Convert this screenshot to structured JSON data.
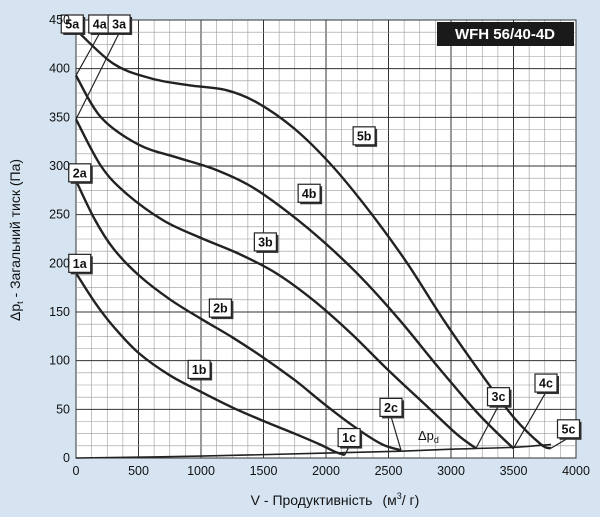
{
  "chart_data": {
    "type": "line",
    "title": "WFH 56/40-4D",
    "xlabel": "V - Продуктивність",
    "xunit": "(м³/г)",
    "xunit_base": "(м",
    "xunit_sup": "3",
    "xunit_end": "/ г)",
    "ylabel_symbol": "Δp",
    "ylabel_sub": "t",
    "ylabel_text": " - Загальний тиск (Па)",
    "xlim": [
      0,
      4000
    ],
    "ylim": [
      0,
      450
    ],
    "x_ticks": [
      "0",
      "500",
      "1000",
      "1500",
      "2000",
      "2500",
      "3000",
      "3500",
      "4000"
    ],
    "y_ticks": [
      "0",
      "50",
      "100",
      "150",
      "200",
      "250",
      "300",
      "350",
      "400",
      "450"
    ],
    "grid": true,
    "minor_grid_x": 125,
    "minor_grid_y": 12.5,
    "colors": {
      "background": "#d6e4f2",
      "plot": "#ffffff",
      "line": "#222222",
      "title_bg": "#1a1a1a"
    },
    "series": [
      {
        "name": "1",
        "points": [
          [
            0,
            190
          ],
          [
            150,
            160
          ],
          [
            300,
            135
          ],
          [
            500,
            108
          ],
          [
            750,
            85
          ],
          [
            1000,
            68
          ],
          [
            1250,
            52
          ],
          [
            1500,
            38
          ],
          [
            1750,
            25
          ],
          [
            1950,
            14
          ],
          [
            2080,
            6
          ],
          [
            2150,
            3
          ]
        ]
      },
      {
        "name": "2",
        "points": [
          [
            0,
            285
          ],
          [
            150,
            245
          ],
          [
            300,
            215
          ],
          [
            500,
            188
          ],
          [
            750,
            163
          ],
          [
            1000,
            143
          ],
          [
            1250,
            124
          ],
          [
            1500,
            103
          ],
          [
            1750,
            80
          ],
          [
            2000,
            54
          ],
          [
            2250,
            30
          ],
          [
            2450,
            14
          ],
          [
            2600,
            8
          ]
        ]
      },
      {
        "name": "3",
        "points": [
          [
            0,
            348
          ],
          [
            200,
            300
          ],
          [
            400,
            272
          ],
          [
            700,
            244
          ],
          [
            1000,
            226
          ],
          [
            1300,
            210
          ],
          [
            1600,
            190
          ],
          [
            1900,
            162
          ],
          [
            2200,
            128
          ],
          [
            2500,
            90
          ],
          [
            2800,
            54
          ],
          [
            3050,
            24
          ],
          [
            3200,
            10
          ]
        ]
      },
      {
        "name": "4",
        "points": [
          [
            0,
            393
          ],
          [
            200,
            350
          ],
          [
            500,
            322
          ],
          [
            800,
            309
          ],
          [
            1100,
            297
          ],
          [
            1400,
            279
          ],
          [
            1700,
            252
          ],
          [
            2000,
            220
          ],
          [
            2300,
            183
          ],
          [
            2600,
            140
          ],
          [
            2900,
            93
          ],
          [
            3200,
            48
          ],
          [
            3400,
            22
          ],
          [
            3500,
            10
          ]
        ]
      },
      {
        "name": "5",
        "points": [
          [
            0,
            440
          ],
          [
            300,
            405
          ],
          [
            600,
            390
          ],
          [
            900,
            383
          ],
          [
            1200,
            378
          ],
          [
            1450,
            365
          ],
          [
            1750,
            338
          ],
          [
            2050,
            300
          ],
          [
            2350,
            253
          ],
          [
            2650,
            200
          ],
          [
            2950,
            140
          ],
          [
            3250,
            85
          ],
          [
            3500,
            42
          ],
          [
            3720,
            14
          ],
          [
            3800,
            10
          ]
        ]
      }
    ],
    "system_curve": {
      "name": "Δp_d",
      "label": "Δp",
      "label_sub": "d",
      "points": [
        [
          0,
          0
        ],
        [
          1000,
          2
        ],
        [
          2000,
          5
        ],
        [
          2600,
          7
        ],
        [
          3000,
          9
        ],
        [
          3500,
          11
        ],
        [
          3800,
          14
        ]
      ]
    },
    "badges": [
      {
        "text": "5a",
        "x": -30,
        "y": 450,
        "lx": 0,
        "ly": 440
      },
      {
        "text": "4a",
        "x": 190,
        "y": 450,
        "lx": 0,
        "ly": 393
      },
      {
        "text": "3a",
        "x": 345,
        "y": 450,
        "lx": 0,
        "ly": 348
      },
      {
        "text": "2a",
        "x": 30,
        "y": 293,
        "lx": null,
        "ly": null
      },
      {
        "text": "1a",
        "x": 30,
        "y": 200,
        "lx": null,
        "ly": null
      },
      {
        "text": "1b",
        "x": 985,
        "y": 91,
        "lx": null,
        "ly": null
      },
      {
        "text": "2b",
        "x": 1155,
        "y": 154,
        "lx": null,
        "ly": null
      },
      {
        "text": "3b",
        "x": 1515,
        "y": 222,
        "lx": null,
        "ly": null
      },
      {
        "text": "4b",
        "x": 1865,
        "y": 272,
        "lx": null,
        "ly": null
      },
      {
        "text": "5b",
        "x": 2305,
        "y": 331,
        "lx": null,
        "ly": null
      },
      {
        "text": "1c",
        "x": 2185,
        "y": 21,
        "lx": 2150,
        "ly": 3
      },
      {
        "text": "2c",
        "x": 2520,
        "y": 52,
        "lx": 2600,
        "ly": 8
      },
      {
        "text": "3c",
        "x": 3380,
        "y": 63,
        "lx": 3200,
        "ly": 10
      },
      {
        "text": "4c",
        "x": 3760,
        "y": 77,
        "lx": 3500,
        "ly": 10
      },
      {
        "text": "5c",
        "x": 3940,
        "y": 30,
        "lx": 3800,
        "ly": 10
      }
    ]
  }
}
